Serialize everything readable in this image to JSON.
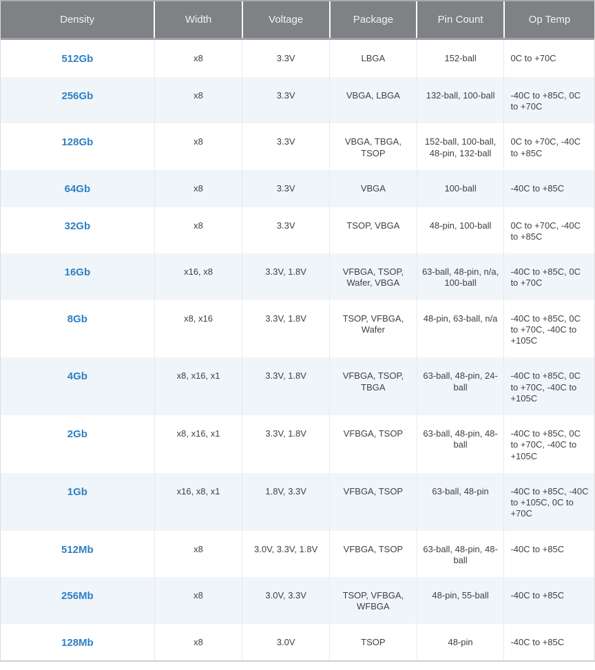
{
  "table": {
    "columns": [
      {
        "id": "density",
        "label": "Density"
      },
      {
        "id": "width",
        "label": "Width"
      },
      {
        "id": "voltage",
        "label": "Voltage"
      },
      {
        "id": "package",
        "label": "Package"
      },
      {
        "id": "pin_count",
        "label": "Pin Count"
      },
      {
        "id": "op_temp",
        "label": "Op Temp"
      }
    ],
    "rows": [
      {
        "density": "512Gb",
        "width": "x8",
        "voltage": "3.3V",
        "package": "LBGA",
        "pin_count": "152-ball",
        "op_temp": "0C to +70C"
      },
      {
        "density": "256Gb",
        "width": "x8",
        "voltage": "3.3V",
        "package": "VBGA, LBGA",
        "pin_count": "132-ball, 100-ball",
        "op_temp": "-40C to +85C, 0C to +70C"
      },
      {
        "density": "128Gb",
        "width": "x8",
        "voltage": "3.3V",
        "package": "VBGA, TBGA, TSOP",
        "pin_count": "152-ball, 100-ball, 48-pin, 132-ball",
        "op_temp": "0C to +70C, -40C to +85C"
      },
      {
        "density": "64Gb",
        "width": "x8",
        "voltage": "3.3V",
        "package": "VBGA",
        "pin_count": "100-ball",
        "op_temp": "-40C to +85C"
      },
      {
        "density": "32Gb",
        "width": "x8",
        "voltage": "3.3V",
        "package": "TSOP, VBGA",
        "pin_count": "48-pin, 100-ball",
        "op_temp": "0C to +70C, -40C to +85C"
      },
      {
        "density": "16Gb",
        "width": "x16, x8",
        "voltage": "3.3V, 1.8V",
        "package": "VFBGA, TSOP, Wafer, VBGA",
        "pin_count": "63-ball, 48-pin, n/a, 100-ball",
        "op_temp": "-40C to +85C, 0C to +70C"
      },
      {
        "density": "8Gb",
        "width": "x8, x16",
        "voltage": "3.3V, 1.8V",
        "package": "TSOP, VFBGA, Wafer",
        "pin_count": "48-pin, 63-ball, n/a",
        "op_temp": "-40C to +85C, 0C to +70C, -40C to +105C"
      },
      {
        "density": "4Gb",
        "width": "x8, x16, x1",
        "voltage": "3.3V, 1.8V",
        "package": "VFBGA, TSOP, TBGA",
        "pin_count": "63-ball, 48-pin, 24-ball",
        "op_temp": "-40C to +85C, 0C to +70C, -40C to +105C"
      },
      {
        "density": "2Gb",
        "width": "x8, x16, x1",
        "voltage": "3.3V, 1.8V",
        "package": "VFBGA, TSOP",
        "pin_count": "63-ball, 48-pin, 48-ball",
        "op_temp": "-40C to +85C, 0C to +70C, -40C to +105C"
      },
      {
        "density": "1Gb",
        "width": "x16, x8, x1",
        "voltage": "1.8V, 3.3V",
        "package": "VFBGA, TSOP",
        "pin_count": "63-ball, 48-pin",
        "op_temp": "-40C to +85C, -40C to +105C, 0C to +70C"
      },
      {
        "density": "512Mb",
        "width": "x8",
        "voltage": "3.0V, 3.3V, 1.8V",
        "package": "VFBGA, TSOP",
        "pin_count": "63-ball, 48-pin, 48-ball",
        "op_temp": "-40C to +85C"
      },
      {
        "density": "256Mb",
        "width": "x8",
        "voltage": "3.0V, 3.3V",
        "package": "TSOP, VFBGA, WFBGA",
        "pin_count": "48-pin, 55-ball",
        "op_temp": "-40C to +85C"
      },
      {
        "density": "128Mb",
        "width": "x8",
        "voltage": "3.0V",
        "package": "TSOP",
        "pin_count": "48-pin",
        "op_temp": "-40C to +85C"
      }
    ]
  },
  "colors": {
    "header_bg": "#7f8184",
    "header_text": "#f2f3f4",
    "link_blue": "#2d80c3",
    "row_alt_bg": "#f0f5fa",
    "body_text": "#3e3f41"
  }
}
